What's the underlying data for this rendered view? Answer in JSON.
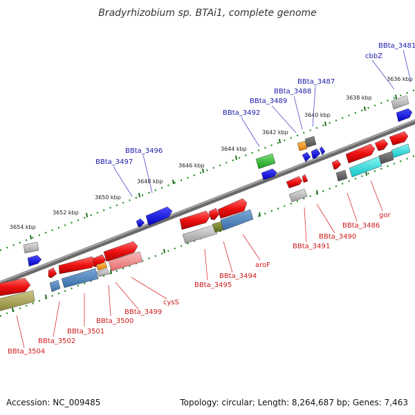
{
  "title": "Bradyrhizobium sp. BTAi1, complete genome",
  "footer": {
    "accession": "Accession: NC_009485",
    "topology": "Topology: circular; Length: 8,264,687 bp; Genes: 7,463"
  },
  "colors": {
    "backbone": "#808080",
    "tick_green": "#1a7a1a",
    "label_blue": "#1a1aaa",
    "label_red": "#cc1a1a",
    "connector_blue": "#4a4acc",
    "connector_red": "#d83030"
  },
  "kbp_labels": [
    "3654 kbp",
    "3652 kbp",
    "3650 kbp",
    "3648 kbp",
    "3646 kbp",
    "3644 kbp",
    "3642 kbp",
    "3640 kbp",
    "3638 kbp",
    "3636 kbp"
  ],
  "gene_labels_top": [
    "BBta_3481",
    "cbbZ",
    "BBta_3487",
    "BBta_3488",
    "BBta_3489",
    "BBta_3492",
    "BBta_3496",
    "BBta_3497"
  ],
  "gene_labels_bottom": [
    "gor",
    "BBta_3486",
    "BBta_3490",
    "BBta_3491",
    "aroF",
    "BBta_3494",
    "BBta_3495",
    "cysS",
    "BBta_3499",
    "BBta_3500",
    "BBta_3501",
    "BBta_3502",
    "BBta_3504"
  ]
}
